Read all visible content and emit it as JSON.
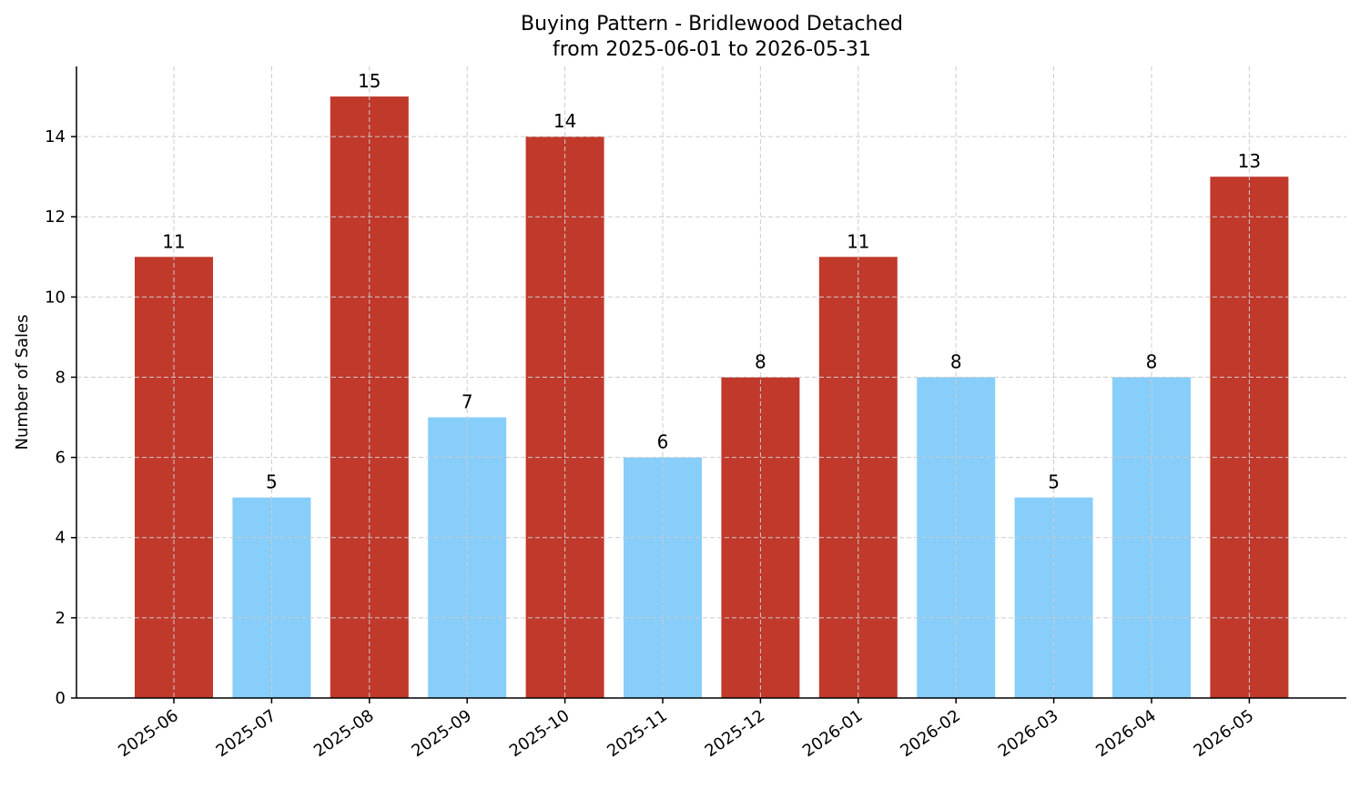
{
  "chart_data": {
    "type": "bar",
    "title": "Buying Pattern - Bridlewood Detached",
    "subtitle": "from 2025-06-01 to 2026-05-31",
    "xlabel": "",
    "ylabel": "Number of Sales",
    "categories": [
      "2025-06",
      "2025-07",
      "2025-08",
      "2025-09",
      "2025-10",
      "2025-11",
      "2025-12",
      "2026-01",
      "2026-02",
      "2026-03",
      "2026-04",
      "2026-05"
    ],
    "values": [
      11,
      5,
      15,
      7,
      14,
      6,
      8,
      11,
      8,
      5,
      8,
      13
    ],
    "bar_colors": [
      "#c0392b",
      "#87cefa",
      "#c0392b",
      "#87cefa",
      "#c0392b",
      "#87cefa",
      "#c0392b",
      "#c0392b",
      "#87cefa",
      "#87cefa",
      "#87cefa",
      "#c0392b"
    ],
    "ylim": [
      0,
      15.75
    ],
    "yticks": [
      0,
      2,
      4,
      6,
      8,
      10,
      12,
      14
    ],
    "grid": true,
    "data_labels": true
  }
}
